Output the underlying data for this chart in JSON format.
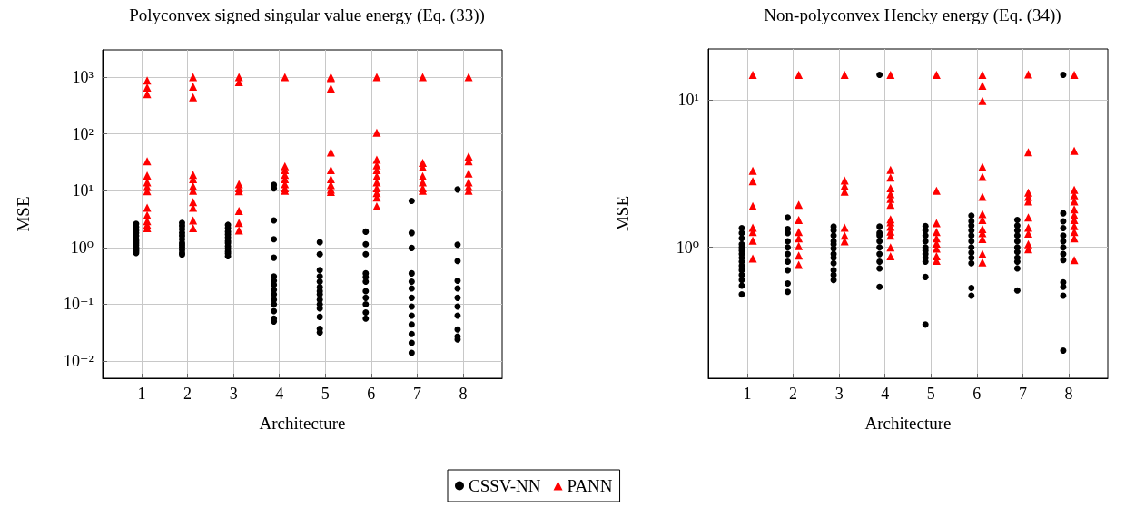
{
  "chart_data": [
    {
      "type": "scatter",
      "title": "Polyconvex signed singular value energy (Eq. (33))",
      "xlabel": "Architecture",
      "ylabel": "MSE",
      "log": "y",
      "grid": true,
      "legend": "bottom",
      "xlim": [
        0.15,
        8.85
      ],
      "xticks": [
        1,
        2,
        3,
        4,
        5,
        6,
        7,
        8
      ],
      "ylim": [
        0.005,
        3000
      ],
      "yticks": [
        {
          "value": 0.01,
          "label": "10⁻²"
        },
        {
          "value": 0.1,
          "label": "10⁻¹"
        },
        {
          "value": 1,
          "label": "10⁰"
        },
        {
          "value": 10,
          "label": "10¹"
        },
        {
          "value": 100,
          "label": "10²"
        },
        {
          "value": 1000,
          "label": "10³"
        }
      ],
      "series": [
        {
          "name": "CSSV-NN",
          "color": "#000000",
          "marker": "circle",
          "x": [
            0.88,
            0.88,
            0.88,
            0.88,
            0.88,
            0.88,
            0.88,
            0.88,
            0.88,
            0.88,
            0.88,
            0.88,
            0.88,
            0.88,
            1.88,
            1.88,
            1.88,
            1.88,
            1.88,
            1.88,
            1.88,
            1.88,
            1.88,
            1.88,
            1.88,
            1.88,
            2.88,
            2.88,
            2.88,
            2.88,
            2.88,
            2.88,
            2.88,
            2.88,
            2.88,
            2.88,
            2.88,
            2.88,
            3.88,
            3.88,
            3.88,
            3.88,
            3.88,
            3.88,
            3.88,
            3.88,
            3.88,
            3.88,
            3.88,
            3.88,
            3.88,
            3.88,
            3.88,
            4.88,
            4.88,
            4.88,
            4.88,
            4.88,
            4.88,
            4.88,
            4.88,
            4.88,
            4.88,
            4.88,
            4.88,
            4.88,
            4.88,
            5.88,
            5.88,
            5.88,
            5.88,
            5.88,
            5.88,
            5.88,
            5.88,
            5.88,
            5.88,
            5.88,
            6.88,
            6.88,
            6.88,
            6.88,
            6.88,
            6.88,
            6.88,
            6.88,
            6.88,
            6.88,
            6.88,
            6.88,
            6.88,
            7.88,
            7.88,
            7.88,
            7.88,
            7.88,
            7.88,
            7.88,
            7.88,
            7.88,
            7.88,
            7.88
          ],
          "values": [
            2.6,
            2.3,
            2.0,
            1.8,
            1.6,
            1.4,
            1.3,
            1.2,
            1.1,
            1.0,
            0.95,
            0.9,
            0.85,
            0.8,
            2.7,
            2.4,
            2.1,
            1.8,
            1.6,
            1.4,
            1.2,
            1.1,
            1.0,
            0.9,
            0.8,
            0.75,
            2.5,
            2.2,
            1.9,
            1.7,
            1.5,
            1.3,
            1.2,
            1.05,
            0.95,
            0.85,
            0.78,
            0.7,
            12.6,
            11,
            3.0,
            1.4,
            0.66,
            0.31,
            0.26,
            0.22,
            0.18,
            0.15,
            0.12,
            0.1,
            0.076,
            0.056,
            0.05,
            1.24,
            0.76,
            0.4,
            0.31,
            0.25,
            0.2,
            0.17,
            0.15,
            0.12,
            0.1,
            0.085,
            0.06,
            0.037,
            0.032,
            1.9,
            1.14,
            0.76,
            0.35,
            0.3,
            0.25,
            0.17,
            0.13,
            0.1,
            0.072,
            0.056,
            6.6,
            1.8,
            0.98,
            0.35,
            0.25,
            0.19,
            0.13,
            0.091,
            0.063,
            0.044,
            0.03,
            0.021,
            0.014,
            10.5,
            1.12,
            0.58,
            0.26,
            0.19,
            0.13,
            0.091,
            0.063,
            0.036,
            0.027,
            0.024
          ]
        },
        {
          "name": "PANN",
          "color": "#ff0000",
          "marker": "triangle",
          "x": [
            1.12,
            1.12,
            1.12,
            1.12,
            1.12,
            1.12,
            1.12,
            1.12,
            1.12,
            1.12,
            1.12,
            1.12,
            1.12,
            2.12,
            2.12,
            2.12,
            2.12,
            2.12,
            2.12,
            2.12,
            2.12,
            2.12,
            2.12,
            2.12,
            3.12,
            3.12,
            3.12,
            3.12,
            3.12,
            3.12,
            3.12,
            3.12,
            4.12,
            4.12,
            4.12,
            4.12,
            4.12,
            4.12,
            4.12,
            4.12,
            5.12,
            5.12,
            5.12,
            5.12,
            5.12,
            5.12,
            5.12,
            5.12,
            5.12,
            6.12,
            6.12,
            6.12,
            6.12,
            6.12,
            6.12,
            6.12,
            6.12,
            6.12,
            6.12,
            6.12,
            7.12,
            7.12,
            7.12,
            7.12,
            7.12,
            7.12,
            7.12,
            8.12,
            8.12,
            8.12,
            8.12,
            8.12,
            8.12,
            8.12
          ],
          "values": [
            870,
            650,
            500,
            33,
            18.5,
            14,
            11.7,
            9.8,
            5,
            3.7,
            2.9,
            2.5,
            2.2,
            1000,
            680,
            440,
            19,
            16,
            12,
            10,
            6.3,
            5,
            3,
            2.2,
            1000,
            810,
            13,
            11,
            9.8,
            4.4,
            2.7,
            2.0,
            1000,
            27,
            23,
            19,
            16,
            13,
            11,
            10,
            1000,
            960,
            630,
            47,
            23,
            16,
            12.5,
            10.4,
            9.5,
            1000,
            105,
            35,
            28,
            23,
            18,
            14,
            11,
            9.1,
            7.6,
            5.3,
            1000,
            31,
            26,
            18,
            14,
            11,
            10,
            1000,
            40,
            33,
            20,
            14,
            11.7,
            10
          ]
        }
      ]
    },
    {
      "type": "scatter",
      "title": "Non-polyconvex Hencky energy (Eq. (34))",
      "xlabel": "Architecture",
      "ylabel": "MSE",
      "log": "y",
      "grid": true,
      "xlim": [
        0.15,
        8.85
      ],
      "xticks": [
        1,
        2,
        3,
        4,
        5,
        6,
        7,
        8
      ],
      "ylim": [
        0.13,
        22
      ],
      "yticks": [
        {
          "value": 1,
          "label": "10⁰"
        },
        {
          "value": 10,
          "label": "10¹"
        }
      ],
      "series": [
        {
          "color": "#000000",
          "marker": "circle",
          "x": [
            0.88,
            0.88,
            0.88,
            0.88,
            0.88,
            0.88,
            0.88,
            0.88,
            0.88,
            0.88,
            0.88,
            0.88,
            0.88,
            0.88,
            0.88,
            1.88,
            1.88,
            1.88,
            1.88,
            1.88,
            1.88,
            1.88,
            1.88,
            1.88,
            1.88,
            2.88,
            2.88,
            2.88,
            2.88,
            2.88,
            2.88,
            2.88,
            2.88,
            2.88,
            2.88,
            2.88,
            2.88,
            3.88,
            3.88,
            3.88,
            3.88,
            3.88,
            3.88,
            3.88,
            3.88,
            3.88,
            3.88,
            4.88,
            4.88,
            4.88,
            4.88,
            4.88,
            4.88,
            4.88,
            4.88,
            4.88,
            4.88,
            4.88,
            5.88,
            5.88,
            5.88,
            5.88,
            5.88,
            5.88,
            5.88,
            5.88,
            5.88,
            5.88,
            5.88,
            5.88,
            6.88,
            6.88,
            6.88,
            6.88,
            6.88,
            6.88,
            6.88,
            6.88,
            6.88,
            6.88,
            6.88,
            7.88,
            7.88,
            7.88,
            7.88,
            7.88,
            7.88,
            7.88,
            7.88,
            7.88,
            7.88,
            7.88,
            7.88,
            7.88
          ],
          "values": [
            1.35,
            1.25,
            1.15,
            1.05,
            1.0,
            0.95,
            0.9,
            0.85,
            0.8,
            0.75,
            0.7,
            0.65,
            0.6,
            0.55,
            0.48,
            1.59,
            1.33,
            1.25,
            1.1,
            1.0,
            0.9,
            0.8,
            0.7,
            0.57,
            0.5,
            1.38,
            1.3,
            1.2,
            1.1,
            1.05,
            0.98,
            0.9,
            0.85,
            0.78,
            0.7,
            0.65,
            0.6,
            14.7,
            1.38,
            1.25,
            1.2,
            1.1,
            1.0,
            0.9,
            0.8,
            0.72,
            0.54,
            1.39,
            1.3,
            1.2,
            1.1,
            1.0,
            0.95,
            0.9,
            0.85,
            0.8,
            0.63,
            0.3,
            1.64,
            1.5,
            1.4,
            1.3,
            1.2,
            1.1,
            1.0,
            0.92,
            0.85,
            0.78,
            0.53,
            0.47,
            1.53,
            1.4,
            1.3,
            1.2,
            1.1,
            1.0,
            0.93,
            0.85,
            0.8,
            0.72,
            0.51,
            14.7,
            1.7,
            1.5,
            1.35,
            1.2,
            1.1,
            1.0,
            0.9,
            0.82,
            0.58,
            0.54,
            0.47,
            0.2
          ]
        },
        {
          "color": "#ff0000",
          "marker": "triangle",
          "x": [
            1.12,
            1.12,
            1.12,
            1.12,
            1.12,
            1.12,
            1.12,
            1.12,
            2.12,
            2.12,
            2.12,
            2.12,
            2.12,
            2.12,
            2.12,
            2.12,
            3.12,
            3.12,
            3.12,
            3.12,
            3.12,
            3.12,
            3.12,
            4.12,
            4.12,
            4.12,
            4.12,
            4.12,
            4.12,
            4.12,
            4.12,
            4.12,
            4.12,
            4.12,
            4.12,
            4.12,
            4.12,
            5.12,
            5.12,
            5.12,
            5.12,
            5.12,
            5.12,
            5.12,
            5.12,
            5.12,
            6.12,
            6.12,
            6.12,
            6.12,
            6.12,
            6.12,
            6.12,
            6.12,
            6.12,
            6.12,
            6.12,
            6.12,
            6.12,
            7.12,
            7.12,
            7.12,
            7.12,
            7.12,
            7.12,
            7.12,
            7.12,
            7.12,
            7.12,
            8.12,
            8.12,
            8.12,
            8.12,
            8.12,
            8.12,
            8.12,
            8.12,
            8.12,
            8.12,
            8.12,
            8.12
          ],
          "values": [
            14.7,
            3.3,
            2.8,
            1.9,
            1.36,
            1.27,
            1.11,
            0.84,
            14.7,
            1.94,
            1.53,
            1.27,
            1.15,
            1.02,
            0.88,
            0.76,
            14.7,
            2.83,
            2.6,
            2.38,
            1.36,
            1.2,
            1.1,
            14.7,
            3.34,
            2.97,
            2.51,
            2.29,
            2.13,
            1.94,
            1.55,
            1.48,
            1.38,
            1.28,
            1.2,
            1.0,
            0.87,
            14.7,
            2.42,
            1.46,
            1.27,
            1.15,
            1.06,
            0.98,
            0.87,
            0.81,
            14.7,
            12.4,
            9.8,
            3.5,
            3.0,
            2.2,
            1.68,
            1.53,
            1.33,
            1.25,
            1.14,
            0.9,
            0.79,
            14.8,
            4.4,
            2.35,
            2.2,
            2.05,
            1.59,
            1.36,
            1.24,
            1.05,
            0.97,
            14.7,
            4.5,
            2.45,
            2.25,
            2.05,
            1.81,
            1.65,
            1.53,
            1.39,
            1.27,
            1.15,
            0.82
          ]
        }
      ]
    }
  ]
}
